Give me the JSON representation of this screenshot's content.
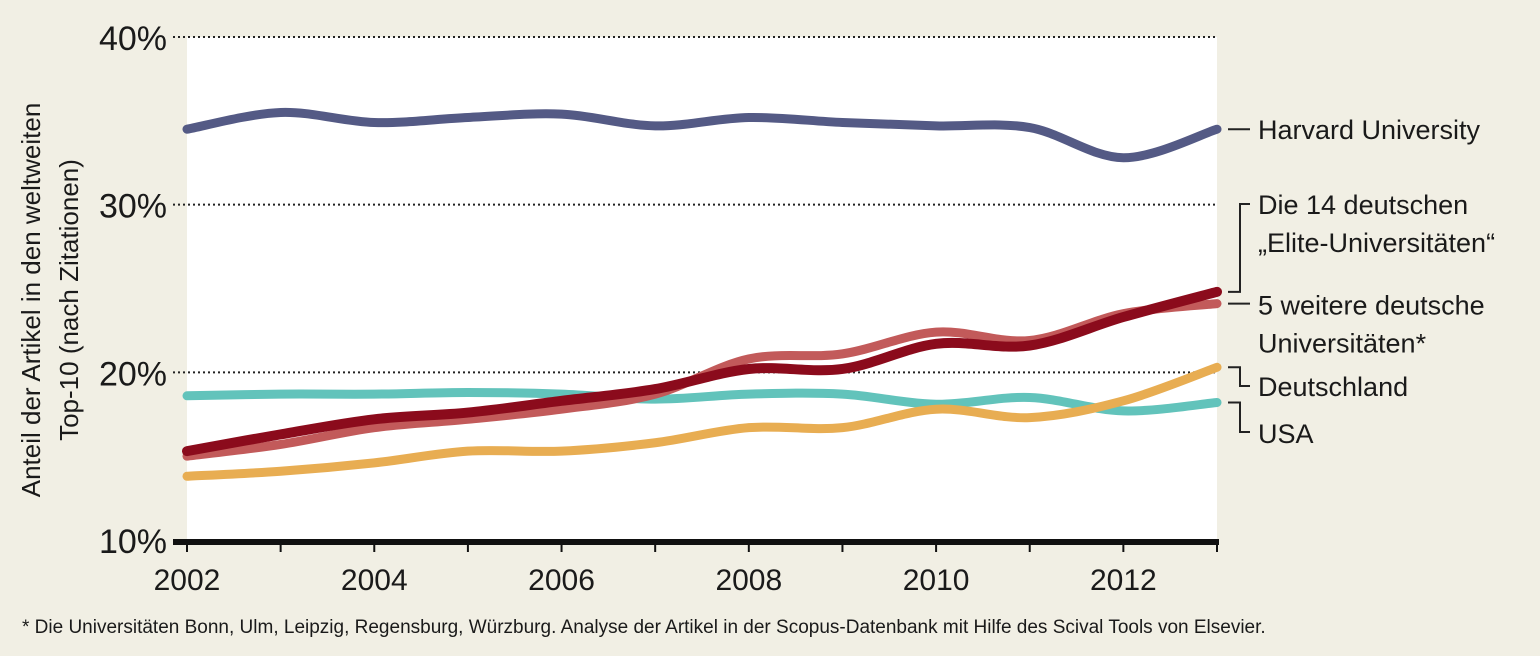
{
  "chart_data": {
    "type": "line",
    "ylabel_line1": "Anteil der Artikel in den weltweiten",
    "ylabel_line2": "Top-10 (nach Zitationen)",
    "xlabel": "",
    "ylim": [
      10,
      40
    ],
    "xlim": [
      2002,
      2013
    ],
    "y_ticks": [
      10,
      20,
      30,
      40
    ],
    "y_tick_labels": [
      "10%",
      "20%",
      "30%",
      "40%"
    ],
    "x_tick_labels": [
      "2002",
      "2004",
      "2006",
      "2008",
      "2010",
      "2012"
    ],
    "x_tick_values": [
      2002,
      2004,
      2006,
      2008,
      2010,
      2012
    ],
    "grid": "horizontal dotted at 20%, 30%, 40%",
    "legend": "right of plot, labels next to line ends",
    "x": [
      2002,
      2003,
      2004,
      2005,
      2006,
      2007,
      2008,
      2009,
      2010,
      2011,
      2012,
      2013
    ],
    "series": [
      {
        "name": "Harvard University",
        "label_lines": [
          "Harvard University"
        ],
        "color": "#545a85",
        "values": [
          34.5,
          35.5,
          34.9,
          35.2,
          35.4,
          34.7,
          35.2,
          34.9,
          34.7,
          34.6,
          32.8,
          34.5
        ]
      },
      {
        "name": "Die 14 deutschen „Elite-Universitäten“",
        "label_lines": [
          "Die 14 deutschen",
          "„Elite-Universitäten“"
        ],
        "color": "#8b0b1c",
        "values": [
          15.3,
          16.3,
          17.2,
          17.6,
          18.3,
          19.0,
          20.2,
          20.2,
          21.7,
          21.6,
          23.3,
          24.8
        ]
      },
      {
        "name": "5 weitere deutsche Universitäten*",
        "label_lines": [
          "5 weitere deutsche",
          "Universitäten*"
        ],
        "color": "#c25a5a",
        "values": [
          15.0,
          15.7,
          16.7,
          17.2,
          17.8,
          18.7,
          20.8,
          21.1,
          22.4,
          21.9,
          23.5,
          24.1
        ]
      },
      {
        "name": "Deutschland",
        "label_lines": [
          "Deutschland"
        ],
        "color": "#e8ad52",
        "values": [
          13.8,
          14.1,
          14.6,
          15.3,
          15.3,
          15.8,
          16.7,
          16.7,
          17.8,
          17.3,
          18.3,
          20.3
        ]
      },
      {
        "name": "USA",
        "label_lines": [
          "USA"
        ],
        "color": "#62c3bb",
        "values": [
          18.6,
          18.7,
          18.7,
          18.8,
          18.7,
          18.4,
          18.7,
          18.7,
          18.1,
          18.5,
          17.7,
          18.2
        ]
      }
    ],
    "footnote": "* Die Universitäten Bonn, Ulm, Leipzig, Regensburg, Würzburg. Analyse der Artikel in der Scopus-Datenbank mit Hilfe des Scival Tools von Elsevier."
  }
}
